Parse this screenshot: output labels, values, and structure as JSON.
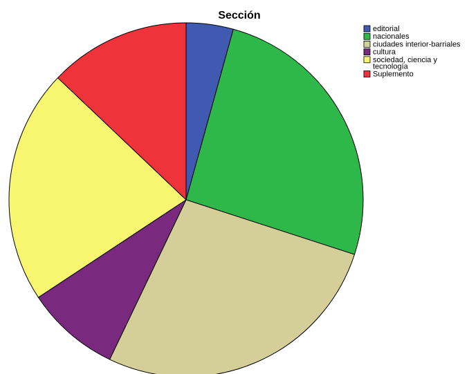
{
  "chart_data": {
    "type": "pie",
    "title": "Sección",
    "legend_position": "top-right",
    "slices": [
      {
        "label": [
          "editorial"
        ],
        "value": 4.3,
        "color": "#3f5ab0"
      },
      {
        "label": [
          "nacionales"
        ],
        "value": 25.7,
        "color": "#2fb84a"
      },
      {
        "label": [
          "ciudades interior-barriales"
        ],
        "value": 27.1,
        "color": "#d4cf98"
      },
      {
        "label": [
          "cultura"
        ],
        "value": 8.6,
        "color": "#7a2a7e"
      },
      {
        "label": [
          "sociedad, ciencia y",
          "tecnología"
        ],
        "value": 21.4,
        "color": "#f8f570"
      },
      {
        "label": [
          "Suplemento"
        ],
        "value": 12.9,
        "color": "#ef333a"
      }
    ]
  }
}
